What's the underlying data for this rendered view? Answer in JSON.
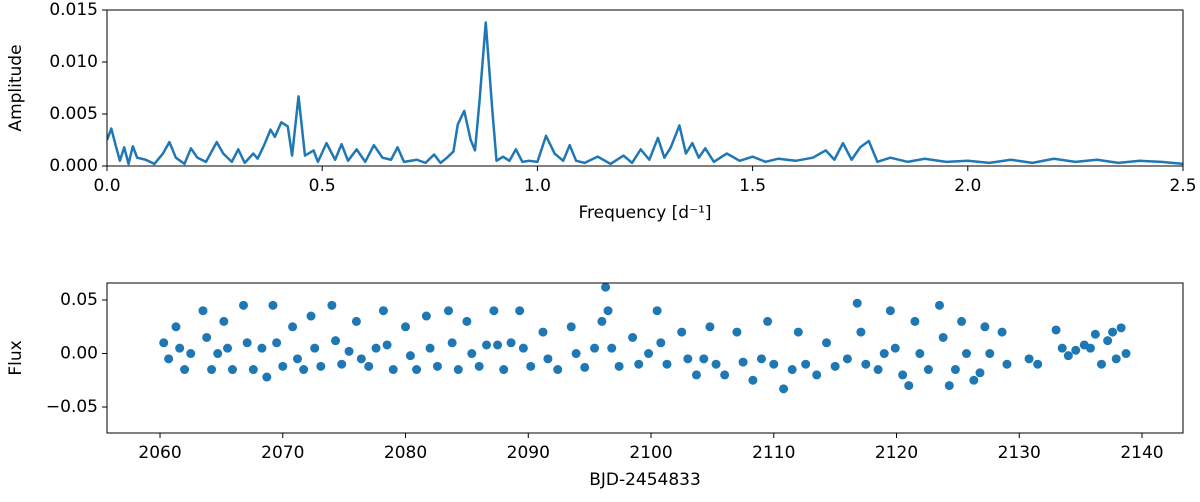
{
  "chart_data": [
    {
      "type": "line",
      "xlabel": "Frequency [d⁻¹]",
      "ylabel": "Amplitude",
      "color": "#1f77b4",
      "x": [
        0,
        0.01,
        0.02,
        0.03,
        0.04,
        0.05,
        0.06,
        0.07,
        0.09,
        0.11,
        0.13,
        0.145,
        0.16,
        0.18,
        0.195,
        0.21,
        0.23,
        0.255,
        0.27,
        0.29,
        0.305,
        0.32,
        0.34,
        0.35,
        0.365,
        0.38,
        0.39,
        0.405,
        0.42,
        0.43,
        0.445,
        0.46,
        0.48,
        0.49,
        0.51,
        0.53,
        0.545,
        0.56,
        0.58,
        0.6,
        0.62,
        0.64,
        0.66,
        0.675,
        0.69,
        0.72,
        0.74,
        0.76,
        0.775,
        0.79,
        0.805,
        0.815,
        0.83,
        0.845,
        0.855,
        0.865,
        0.88,
        0.895,
        0.905,
        0.92,
        0.935,
        0.95,
        0.965,
        0.98,
        1.0,
        1.02,
        1.04,
        1.06,
        1.075,
        1.09,
        1.11,
        1.14,
        1.17,
        1.2,
        1.22,
        1.24,
        1.26,
        1.28,
        1.295,
        1.31,
        1.33,
        1.345,
        1.36,
        1.375,
        1.39,
        1.41,
        1.44,
        1.47,
        1.5,
        1.53,
        1.56,
        1.6,
        1.64,
        1.67,
        1.69,
        1.71,
        1.73,
        1.75,
        1.77,
        1.79,
        1.82,
        1.86,
        1.9,
        1.95,
        2.0,
        2.05,
        2.1,
        2.15,
        2.2,
        2.25,
        2.3,
        2.35,
        2.4,
        2.45,
        2.5
      ],
      "values": [
        0.0025,
        0.0036,
        0.002,
        0.0005,
        0.0018,
        0.0002,
        0.0019,
        0.0008,
        0.0006,
        0.0002,
        0.0012,
        0.0023,
        0.0008,
        0.0002,
        0.0017,
        0.0008,
        0.0004,
        0.0023,
        0.0012,
        0.0004,
        0.0016,
        0.0003,
        0.0012,
        0.0007,
        0.002,
        0.0035,
        0.0028,
        0.0042,
        0.0038,
        0.001,
        0.0067,
        0.001,
        0.0015,
        0.0004,
        0.0022,
        0.0006,
        0.0021,
        0.0005,
        0.0016,
        0.0004,
        0.002,
        0.0008,
        0.0006,
        0.0018,
        0.0004,
        0.0006,
        0.0003,
        0.0011,
        0.0003,
        0.0008,
        0.0014,
        0.004,
        0.0053,
        0.0025,
        0.0015,
        0.006,
        0.0138,
        0.0055,
        0.0005,
        0.0009,
        0.0005,
        0.0016,
        0.0004,
        0.0005,
        0.0004,
        0.0029,
        0.0012,
        0.0005,
        0.002,
        0.0005,
        0.0003,
        0.0009,
        0.0002,
        0.001,
        0.0003,
        0.0016,
        0.0006,
        0.0027,
        0.0008,
        0.0018,
        0.0039,
        0.0012,
        0.0022,
        0.0008,
        0.0017,
        0.0004,
        0.0012,
        0.0005,
        0.0009,
        0.0004,
        0.0007,
        0.0005,
        0.0008,
        0.0015,
        0.0006,
        0.0022,
        0.0006,
        0.0018,
        0.0024,
        0.0004,
        0.0008,
        0.0004,
        0.0007,
        0.0004,
        0.0005,
        0.0003,
        0.0006,
        0.0003,
        0.0007,
        0.0004,
        0.0006,
        0.0003,
        0.0005,
        0.0004,
        0.0002
      ],
      "xlim": [
        0,
        2.5
      ],
      "xticks": [
        {
          "value": 0,
          "label": "0.0"
        },
        0.5,
        {
          "value": 1,
          "label": "1.0"
        },
        1.5,
        {
          "value": 2,
          "label": "2.0"
        },
        2.5
      ],
      "ylim": [
        0,
        0.015
      ],
      "yticks": [
        {
          "value": 0,
          "label": "0.000"
        },
        {
          "value": 0.005,
          "label": "0.005"
        },
        {
          "value": 0.01,
          "label": "0.010"
        },
        {
          "value": 0.015,
          "label": "0.015"
        }
      ]
    },
    {
      "type": "scatter",
      "xlabel": "BJD-2454833",
      "ylabel": "Flux",
      "color": "#1f77b4",
      "x": [
        2060.3,
        2060.7,
        2061.3,
        2061.6,
        2062.0,
        2062.5,
        2063.5,
        2063.8,
        2064.2,
        2064.7,
        2065.2,
        2065.5,
        2065.9,
        2066.8,
        2067.1,
        2067.6,
        2068.3,
        2068.7,
        2069.2,
        2069.5,
        2070.0,
        2070.8,
        2071.2,
        2071.7,
        2072.3,
        2072.6,
        2073.1,
        2074.0,
        2074.3,
        2074.8,
        2075.4,
        2076.0,
        2076.4,
        2077.0,
        2077.6,
        2078.2,
        2078.5,
        2079.0,
        2080.0,
        2080.4,
        2080.9,
        2081.7,
        2082.0,
        2082.6,
        2083.5,
        2083.8,
        2084.3,
        2085.0,
        2085.4,
        2086.0,
        2086.6,
        2087.2,
        2087.5,
        2088.0,
        2088.6,
        2089.3,
        2089.6,
        2090.2,
        2091.2,
        2091.6,
        2092.4,
        2093.5,
        2093.9,
        2094.6,
        2095.4,
        2096.0,
        2096.3,
        2096.5,
        2096.8,
        2097.4,
        2098.5,
        2099.0,
        2099.8,
        2100.5,
        2100.8,
        2101.3,
        2102.5,
        2103.0,
        2103.7,
        2104.3,
        2104.8,
        2105.3,
        2106.0,
        2107.0,
        2107.5,
        2108.3,
        2109.0,
        2109.5,
        2110.0,
        2110.8,
        2111.5,
        2112.0,
        2112.6,
        2113.5,
        2114.3,
        2115.0,
        2116.0,
        2116.8,
        2117.1,
        2117.5,
        2118.5,
        2119.0,
        2119.5,
        2119.9,
        2120.5,
        2121.0,
        2121.5,
        2121.9,
        2122.6,
        2123.5,
        2123.8,
        2124.3,
        2124.8,
        2125.3,
        2125.7,
        2126.3,
        2126.8,
        2127.2,
        2127.6,
        2128.6,
        2129.0,
        2130.8,
        2131.5,
        2133.0,
        2133.5,
        2134.0,
        2134.6,
        2135.3,
        2135.8,
        2136.2,
        2136.7,
        2137.2,
        2137.6,
        2137.9,
        2138.3,
        2138.7
      ],
      "values": [
        0.01,
        -0.005,
        0.025,
        0.005,
        -0.015,
        0.0,
        0.04,
        0.015,
        -0.015,
        0.0,
        0.03,
        0.005,
        -0.015,
        0.045,
        0.01,
        -0.015,
        0.005,
        -0.022,
        0.045,
        0.01,
        -0.012,
        0.025,
        -0.005,
        -0.015,
        0.035,
        0.005,
        -0.012,
        0.045,
        0.012,
        -0.01,
        0.002,
        0.03,
        -0.005,
        -0.012,
        0.005,
        0.04,
        0.008,
        -0.015,
        0.025,
        -0.002,
        -0.015,
        0.035,
        0.005,
        -0.012,
        0.04,
        0.01,
        -0.015,
        0.03,
        0.0,
        -0.012,
        0.008,
        0.04,
        0.008,
        -0.015,
        0.01,
        0.04,
        0.005,
        -0.012,
        0.02,
        -0.005,
        -0.015,
        0.025,
        0.0,
        -0.013,
        0.005,
        0.03,
        0.062,
        0.04,
        0.005,
        -0.012,
        0.015,
        -0.01,
        0.0,
        0.04,
        0.01,
        -0.01,
        0.02,
        -0.005,
        -0.02,
        -0.005,
        0.025,
        -0.01,
        -0.02,
        0.02,
        -0.008,
        -0.025,
        -0.005,
        0.03,
        -0.01,
        -0.033,
        -0.015,
        0.02,
        -0.01,
        -0.02,
        0.01,
        -0.012,
        -0.005,
        0.047,
        0.02,
        -0.01,
        -0.015,
        0.0,
        0.04,
        0.005,
        -0.02,
        -0.03,
        0.03,
        0.0,
        -0.015,
        0.045,
        0.015,
        -0.03,
        -0.015,
        0.03,
        0.0,
        -0.025,
        -0.018,
        0.025,
        0.0,
        0.02,
        -0.01,
        -0.005,
        -0.01,
        0.022,
        0.005,
        -0.002,
        0.003,
        0.008,
        0.005,
        0.018,
        -0.01,
        0.012,
        0.02,
        -0.005,
        0.024,
        0.0
      ],
      "xlim": [
        2055.68,
        2143.34
      ],
      "xticks": [
        2060,
        2070,
        2080,
        2090,
        2100,
        2110,
        2120,
        2130,
        2140
      ],
      "ylim": [
        -0.0743,
        0.0659
      ],
      "yticks": [
        {
          "value": -0.05,
          "label": "−0.05"
        },
        {
          "value": 0,
          "label": "0.00"
        },
        0.05
      ]
    }
  ]
}
